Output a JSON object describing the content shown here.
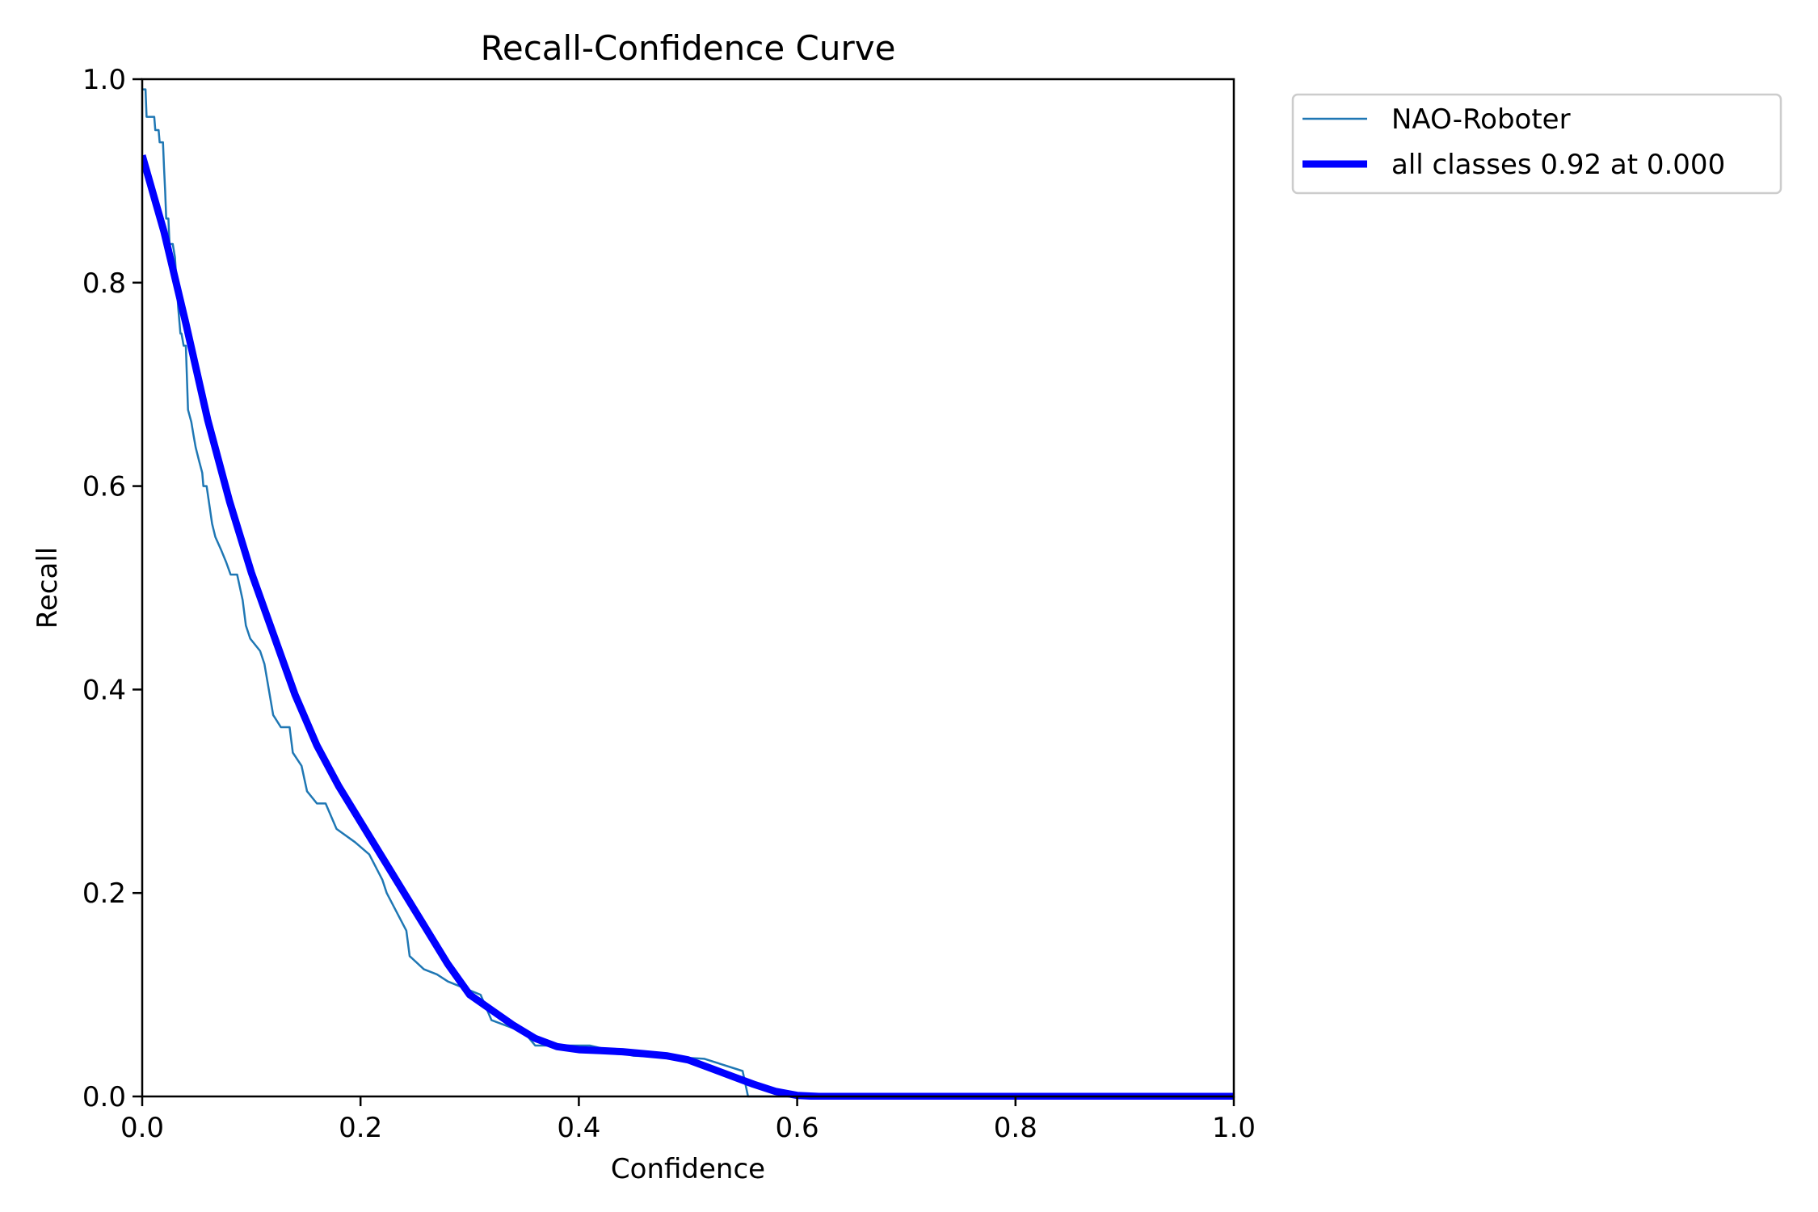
{
  "chart_data": {
    "type": "line",
    "title": "Recall-Confidence Curve",
    "xlabel": "Confidence",
    "ylabel": "Recall",
    "xlim": [
      0,
      1
    ],
    "ylim": [
      0,
      1
    ],
    "xticks": [
      "0.0",
      "0.2",
      "0.4",
      "0.6",
      "0.8",
      "1.0"
    ],
    "yticks": [
      "0.0",
      "0.2",
      "0.4",
      "0.6",
      "0.8",
      "1.0"
    ],
    "grid": false,
    "legend_placement": "outside-top-right",
    "series": [
      {
        "name": "NAO-Roboter",
        "color": "#1f77b4",
        "style": "thin",
        "x": [
          0.0,
          0.003,
          0.004,
          0.011,
          0.012,
          0.015,
          0.016,
          0.019,
          0.02,
          0.021,
          0.022,
          0.024,
          0.025,
          0.028,
          0.03,
          0.033,
          0.035,
          0.036,
          0.038,
          0.04,
          0.042,
          0.045,
          0.047,
          0.049,
          0.052,
          0.055,
          0.056,
          0.059,
          0.064,
          0.067,
          0.072,
          0.077,
          0.081,
          0.087,
          0.092,
          0.095,
          0.099,
          0.108,
          0.112,
          0.116,
          0.12,
          0.127,
          0.135,
          0.138,
          0.146,
          0.151,
          0.16,
          0.168,
          0.178,
          0.195,
          0.208,
          0.22,
          0.224,
          0.242,
          0.245,
          0.258,
          0.27,
          0.28,
          0.31,
          0.32,
          0.35,
          0.36,
          0.41,
          0.45,
          0.5,
          0.515,
          0.55,
          0.555,
          0.6,
          0.65,
          0.7,
          0.8,
          1.0
        ],
        "y": [
          0.99,
          0.99,
          0.963,
          0.963,
          0.95,
          0.95,
          0.938,
          0.938,
          0.913,
          0.89,
          0.863,
          0.863,
          0.838,
          0.838,
          0.825,
          0.775,
          0.75,
          0.75,
          0.738,
          0.738,
          0.675,
          0.663,
          0.65,
          0.638,
          0.625,
          0.613,
          0.6,
          0.6,
          0.563,
          0.55,
          0.538,
          0.525,
          0.513,
          0.513,
          0.488,
          0.463,
          0.45,
          0.438,
          0.425,
          0.4,
          0.375,
          0.363,
          0.363,
          0.338,
          0.325,
          0.3,
          0.288,
          0.288,
          0.263,
          0.25,
          0.238,
          0.213,
          0.2,
          0.163,
          0.138,
          0.125,
          0.12,
          0.113,
          0.1,
          0.075,
          0.063,
          0.05,
          0.05,
          0.04,
          0.038,
          0.037,
          0.025,
          0.0,
          0.0,
          0.0,
          0.0,
          0.0,
          0.0
        ]
      },
      {
        "name": "all classes 0.92 at 0.000",
        "color": "#0000ff",
        "style": "thick",
        "x": [
          0.0,
          0.02,
          0.04,
          0.06,
          0.08,
          0.1,
          0.12,
          0.14,
          0.16,
          0.18,
          0.2,
          0.22,
          0.24,
          0.26,
          0.28,
          0.3,
          0.32,
          0.34,
          0.36,
          0.38,
          0.4,
          0.42,
          0.44,
          0.46,
          0.48,
          0.5,
          0.52,
          0.54,
          0.56,
          0.58,
          0.6,
          0.62,
          0.7,
          0.8,
          0.9,
          1.0
        ],
        "y": [
          0.925,
          0.85,
          0.76,
          0.665,
          0.585,
          0.515,
          0.455,
          0.395,
          0.345,
          0.305,
          0.27,
          0.235,
          0.2,
          0.165,
          0.13,
          0.1,
          0.085,
          0.07,
          0.057,
          0.049,
          0.046,
          0.045,
          0.044,
          0.042,
          0.04,
          0.036,
          0.028,
          0.02,
          0.012,
          0.005,
          0.001,
          0.0,
          0.0,
          0.0,
          0.0,
          0.0
        ]
      }
    ]
  }
}
